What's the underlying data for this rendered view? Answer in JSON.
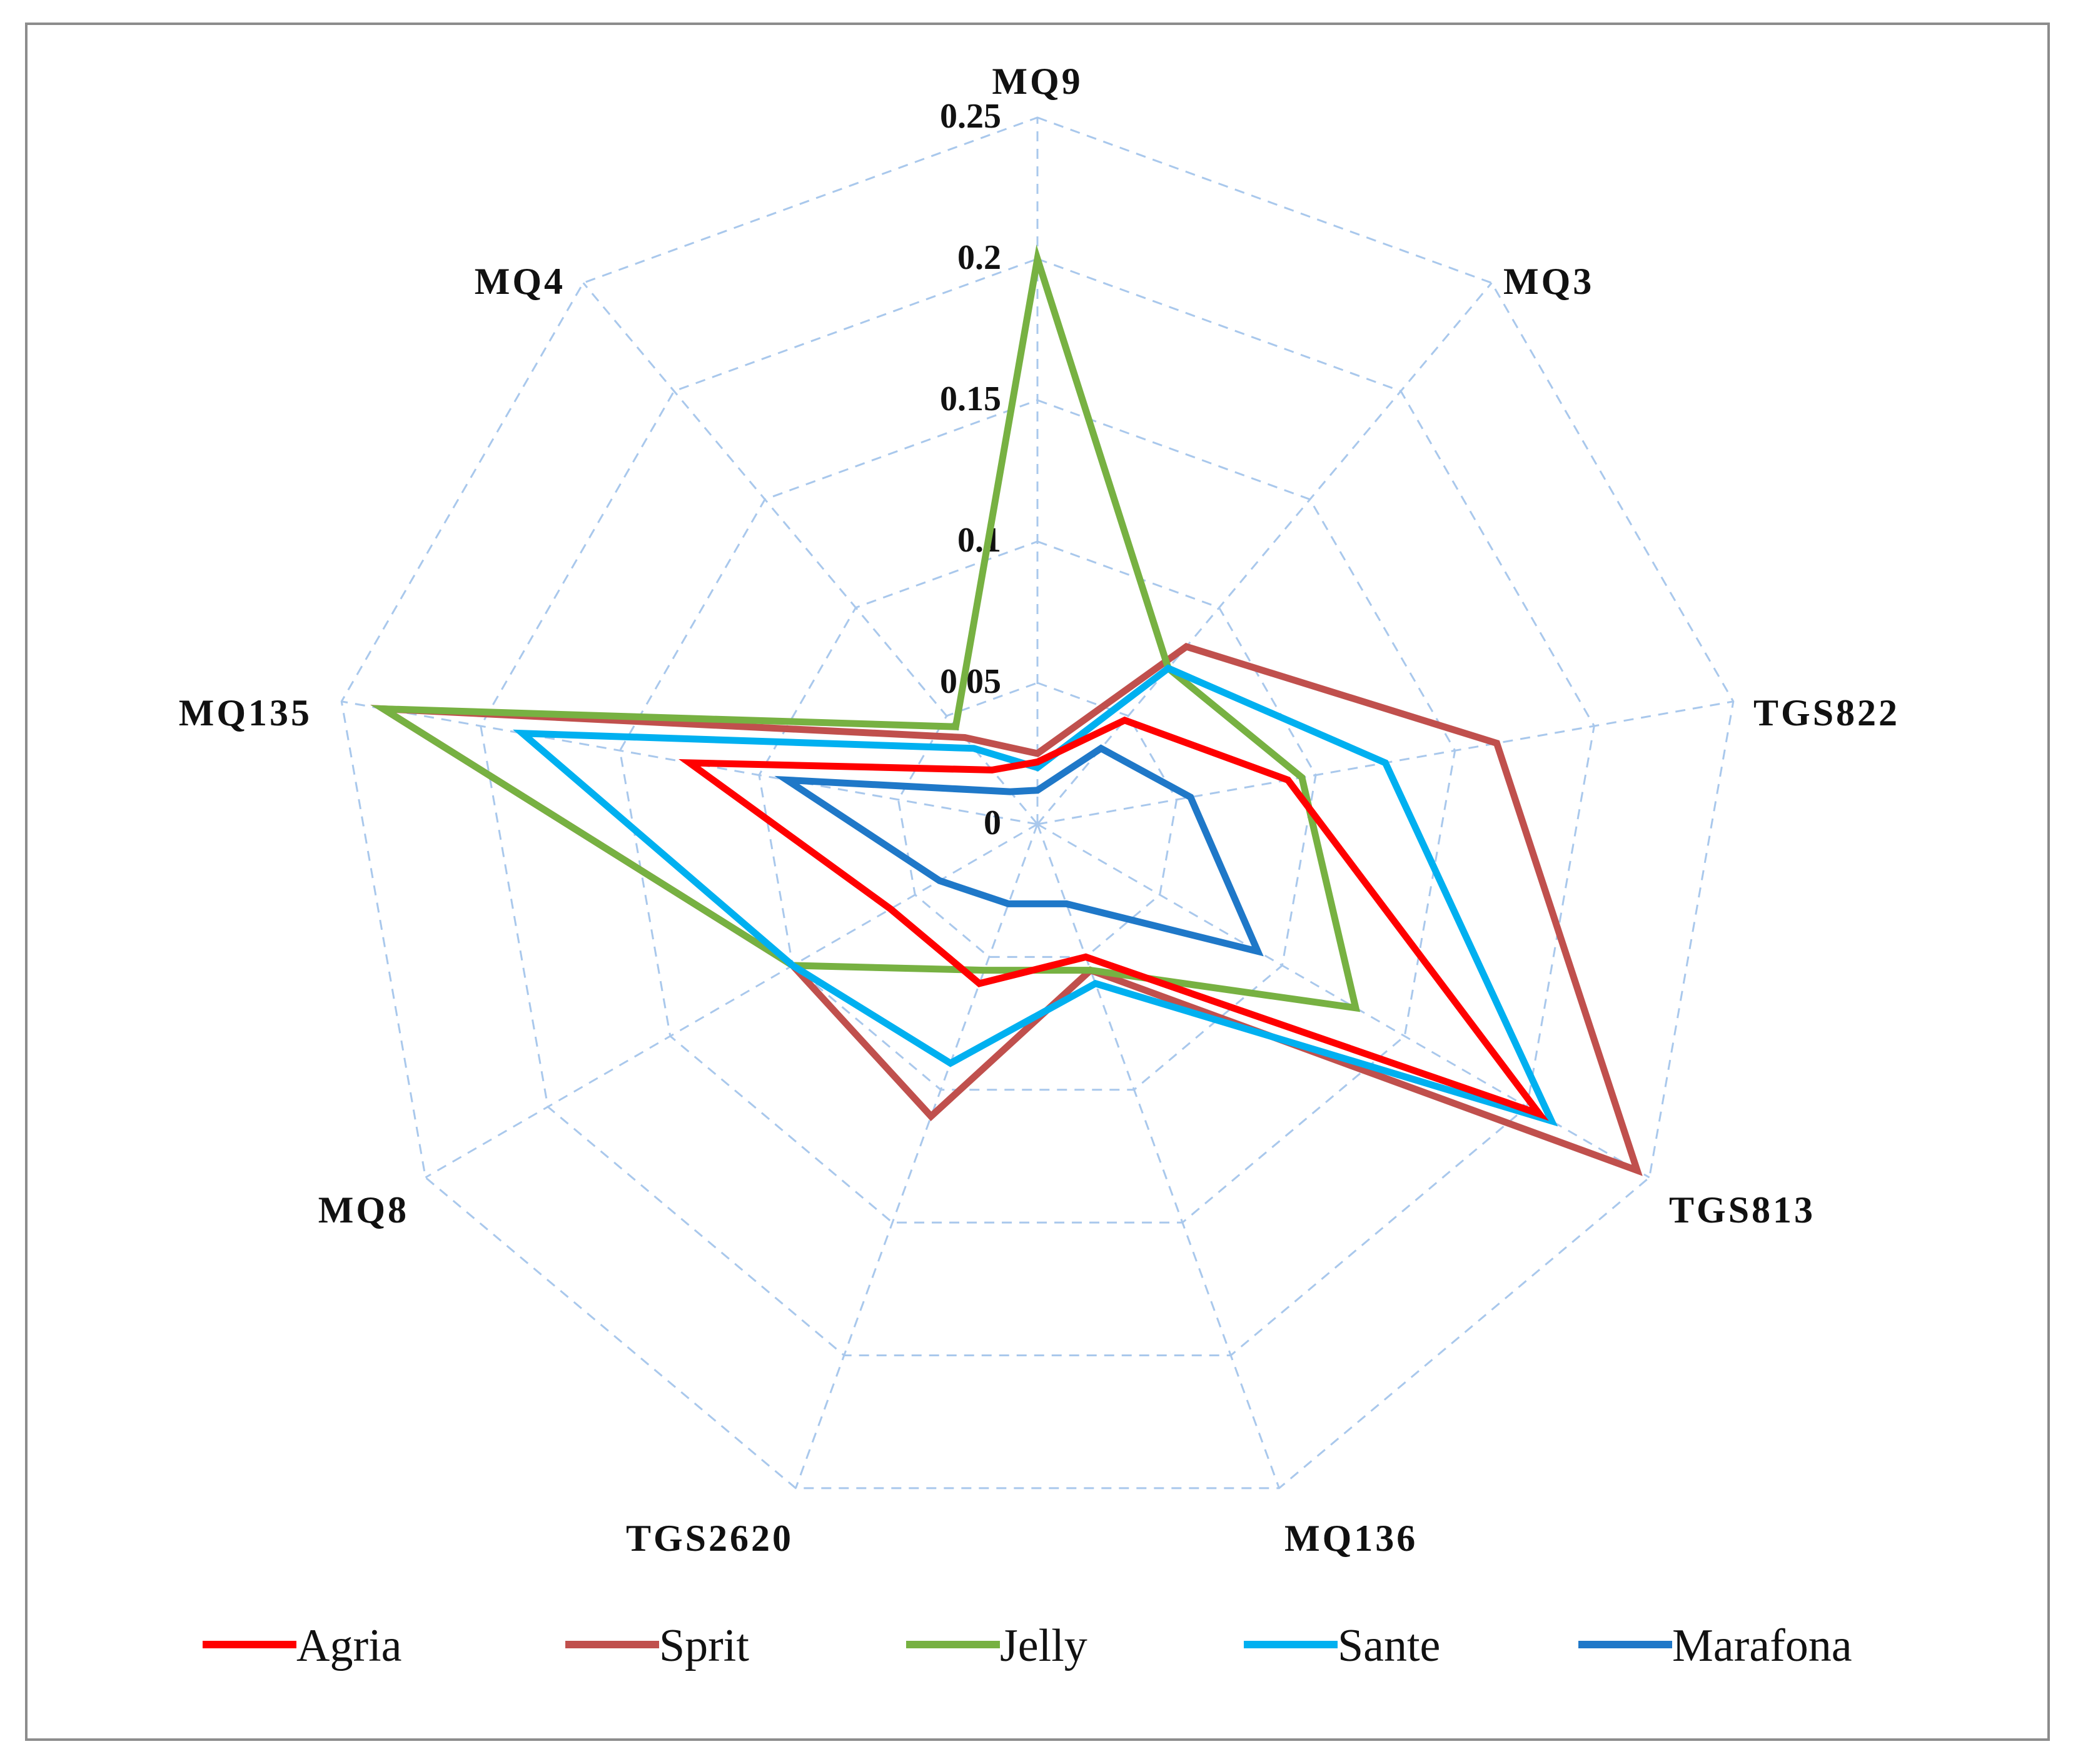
{
  "chart_data": {
    "type": "radar",
    "axes": [
      "MQ9",
      "MQ3",
      "TGS822",
      "TGS813",
      "MQ136",
      "TGS2620",
      "MQ8",
      "MQ135",
      "MQ4"
    ],
    "rlim": [
      0,
      0.25
    ],
    "ticks": [
      {
        "value": 0,
        "label": "0"
      },
      {
        "value": 0.05,
        "label": "0.05"
      },
      {
        "value": 0.1,
        "label": "0.1"
      },
      {
        "value": 0.15,
        "label": "0.15"
      },
      {
        "value": 0.2,
        "label": "0.2"
      },
      {
        "value": 0.25,
        "label": "0.25"
      }
    ],
    "grid": true,
    "legend_position": "bottom",
    "series": [
      {
        "name": "Sprit",
        "color": "#c0504d",
        "values": [
          0.025,
          0.082,
          0.165,
          0.245,
          0.055,
          0.11,
          0.1,
          0.235,
          0.04
        ]
      },
      {
        "name": "Jelly",
        "color": "#77b142",
        "values": [
          0.2,
          0.072,
          0.095,
          0.13,
          0.055,
          0.055,
          0.1,
          0.235,
          0.045
        ]
      },
      {
        "name": "Sante",
        "color": "#00b0f0",
        "values": [
          0.02,
          0.072,
          0.125,
          0.21,
          0.06,
          0.09,
          0.1,
          0.185,
          0.035
        ]
      },
      {
        "name": "Agria",
        "color": "#ff0000",
        "values": [
          0.022,
          0.048,
          0.09,
          0.205,
          0.05,
          0.06,
          0.06,
          0.125,
          0.025
        ]
      },
      {
        "name": "Marafona",
        "color": "#1f78c8",
        "values": [
          0.012,
          0.035,
          0.055,
          0.09,
          0.03,
          0.03,
          0.04,
          0.09,
          0.015
        ]
      }
    ],
    "legend": [
      "Agria",
      "Sprit",
      "Jelly",
      "Sante",
      "Marafona"
    ]
  }
}
